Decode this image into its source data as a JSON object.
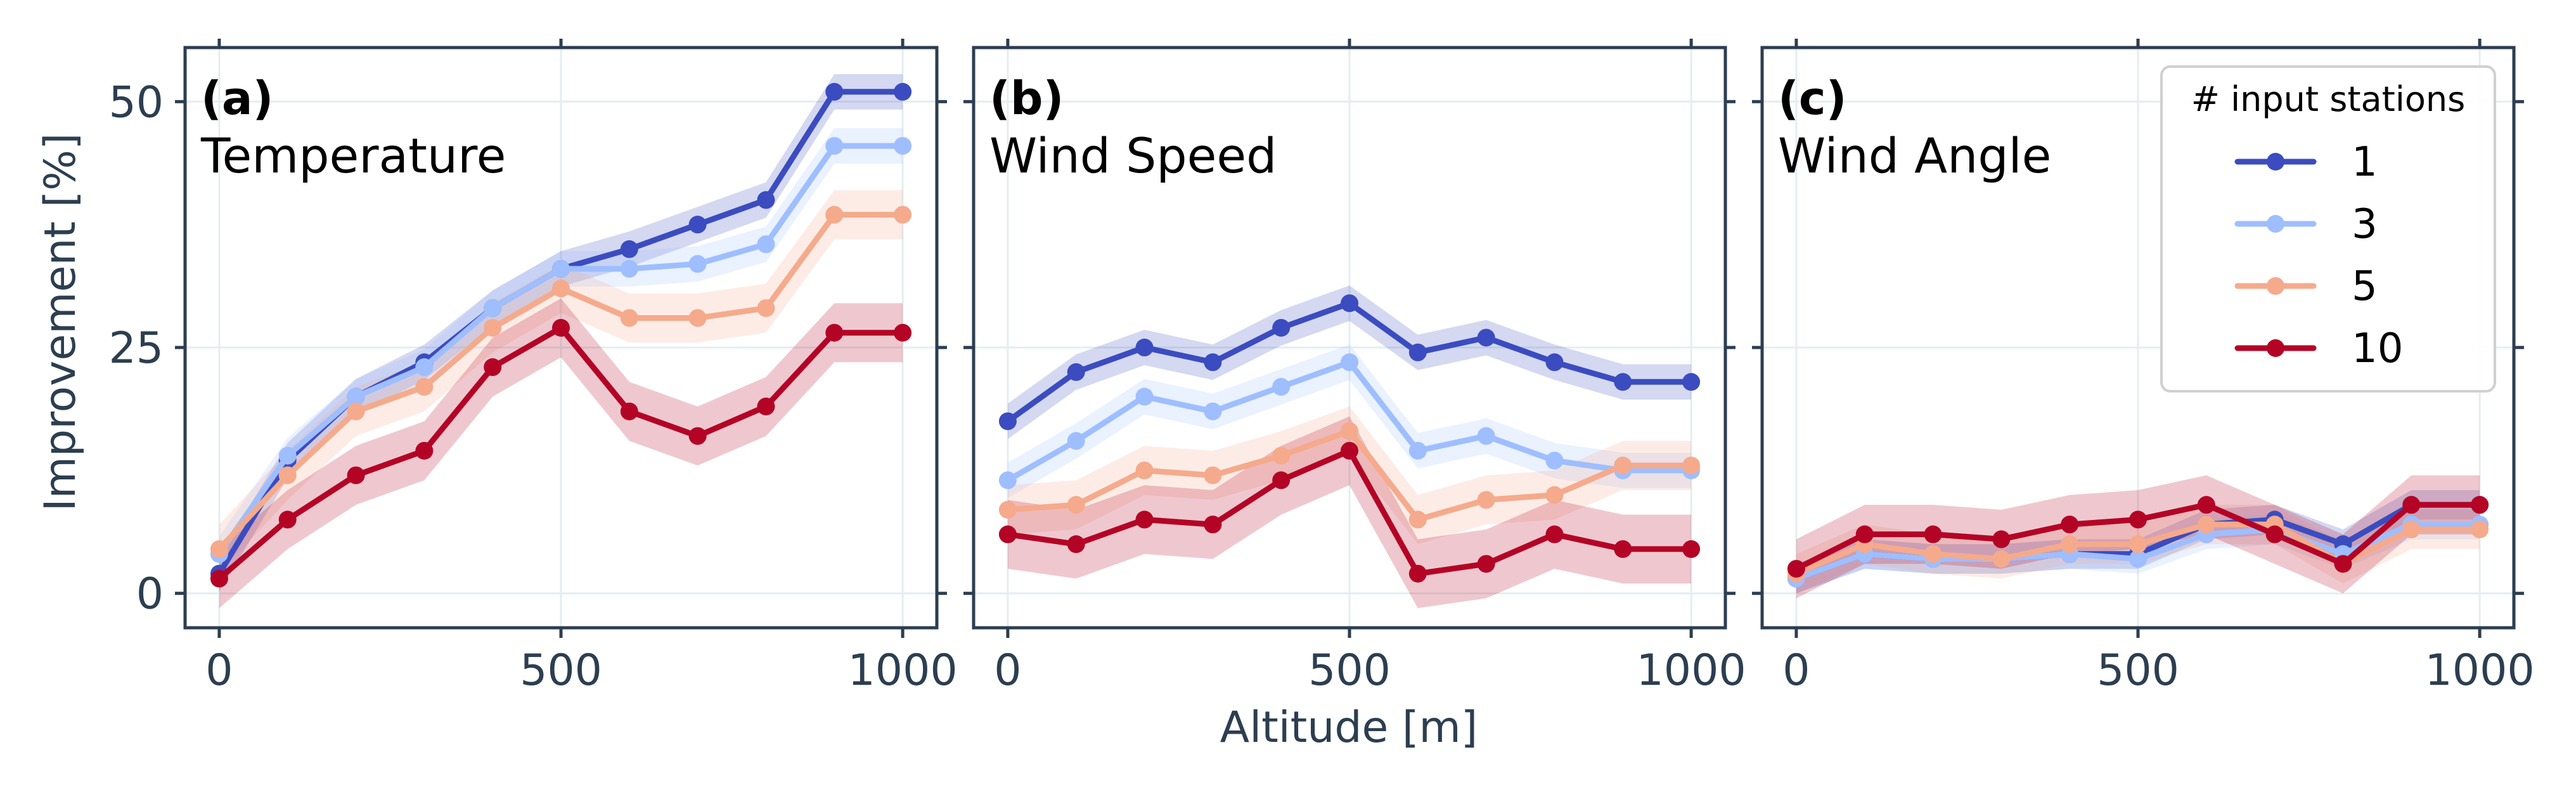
{
  "figure": {
    "ylabel": "Improvement [%]",
    "xlabel": "Altitude [m]",
    "legend": {
      "title": "# input stations",
      "entries": [
        "1",
        "3",
        "5",
        "10"
      ],
      "placement": "top-right of panel (c)"
    },
    "colors": {
      "axis": "#2c3e50",
      "grid": "#e3eef0",
      "series": [
        "#3b4cc0",
        "#9ebeff",
        "#f5aa8c",
        "#b40426"
      ]
    }
  },
  "chart_data": [
    {
      "type": "line",
      "panel_label": "(a)",
      "title": "Temperature",
      "x": [
        0,
        100,
        200,
        300,
        400,
        500,
        600,
        700,
        800,
        900,
        1000
      ],
      "xticks": [
        "0",
        "500",
        "1000"
      ],
      "yticks": [
        "0",
        "25",
        "50"
      ],
      "xlim": [
        -50,
        1050
      ],
      "ylim": [
        -3.5,
        55.5
      ],
      "grid": true,
      "series": [
        {
          "name": "1",
          "values": [
            2,
            13.5,
            20,
            23.5,
            29,
            33,
            35,
            37.5,
            40,
            51,
            51
          ],
          "band": 1.8
        },
        {
          "name": "3",
          "values": [
            4,
            14,
            20,
            23,
            29,
            33,
            33,
            33.5,
            35.5,
            45.5,
            45.5
          ],
          "band": 1.8
        },
        {
          "name": "5",
          "values": [
            4.5,
            12,
            18.5,
            21,
            27,
            31,
            28,
            28,
            29,
            38.5,
            38.5
          ],
          "band": 2.5
        },
        {
          "name": "10",
          "values": [
            1.5,
            7.5,
            12,
            14.5,
            23,
            27,
            18.5,
            16,
            19,
            26.5,
            26.5
          ],
          "band": 3
        }
      ]
    },
    {
      "type": "line",
      "panel_label": "(b)",
      "title": "Wind Speed",
      "x": [
        0,
        100,
        200,
        300,
        400,
        500,
        600,
        700,
        800,
        900,
        1000
      ],
      "xticks": [
        "0",
        "500",
        "1000"
      ],
      "yticks": [
        "0",
        "25",
        "50"
      ],
      "xlim": [
        -50,
        1050
      ],
      "ylim": [
        -3.5,
        55.5
      ],
      "grid": true,
      "series": [
        {
          "name": "1",
          "values": [
            17.5,
            22.5,
            25,
            23.5,
            27,
            29.5,
            24.5,
            26,
            23.5,
            21.5,
            21.5
          ],
          "band": 1.8
        },
        {
          "name": "3",
          "values": [
            11.5,
            15.5,
            20,
            18.5,
            21,
            23.5,
            14.5,
            16,
            13.5,
            12.5,
            12.5
          ],
          "band": 1.8
        },
        {
          "name": "5",
          "values": [
            8.5,
            9,
            12.5,
            12,
            14,
            16.5,
            7.5,
            9.5,
            10,
            13,
            13
          ],
          "band": 2.5
        },
        {
          "name": "10",
          "values": [
            6,
            5,
            7.5,
            7,
            11.5,
            14.5,
            2,
            3,
            6,
            4.5,
            4.5
          ],
          "band": 3.5
        }
      ]
    },
    {
      "type": "line",
      "panel_label": "(c)",
      "title": "Wind Angle",
      "x": [
        0,
        100,
        200,
        300,
        400,
        500,
        600,
        700,
        800,
        900,
        1000
      ],
      "xticks": [
        "0",
        "500",
        "1000"
      ],
      "yticks": [
        "0",
        "25",
        "50"
      ],
      "xlim": [
        -50,
        1050
      ],
      "ylim": [
        -3.5,
        55.5
      ],
      "grid": true,
      "series": [
        {
          "name": "1",
          "values": [
            1.5,
            4,
            3.5,
            3.5,
            4,
            4,
            7,
            7.5,
            5,
            9,
            9
          ],
          "band": 1.5
        },
        {
          "name": "3",
          "values": [
            1.5,
            4,
            3.5,
            3.5,
            4,
            3.5,
            6,
            6.5,
            4,
            7,
            7
          ],
          "band": 1.5
        },
        {
          "name": "5",
          "values": [
            2,
            5,
            4,
            3.5,
            5,
            5,
            7,
            7,
            3,
            6.5,
            6.5
          ],
          "band": 2
        },
        {
          "name": "10",
          "values": [
            2.5,
            6,
            6,
            5.5,
            7,
            7.5,
            9,
            6,
            3,
            9,
            9
          ],
          "band": 3
        }
      ]
    }
  ]
}
